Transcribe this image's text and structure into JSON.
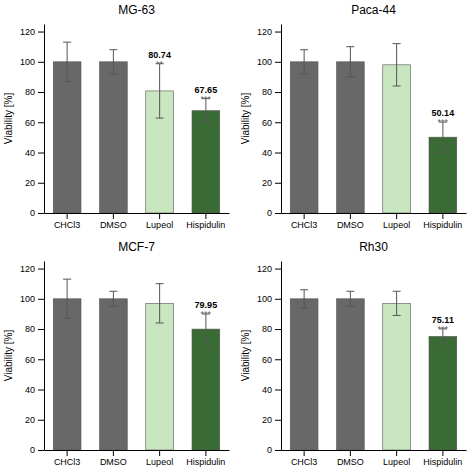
{
  "chart_data": [
    {
      "type": "bar",
      "title": "MG-63",
      "categories": [
        "CHCl3",
        "DMSO",
        "Lupeol",
        "Hispidulin"
      ],
      "values": [
        100,
        100,
        80.74,
        67.65
      ],
      "errors": [
        13,
        8,
        18,
        8
      ],
      "value_labels": [
        null,
        null,
        "80.74",
        "67.65"
      ],
      "annotations": [
        null,
        null,
        "**",
        "***"
      ],
      "colors": [
        "#686868",
        "#686868",
        "#c8e6c0",
        "#3a6b35"
      ],
      "ylabel": "Viability [%]",
      "ylim": [
        0,
        125
      ],
      "yticks": [
        0,
        20,
        40,
        60,
        80,
        100,
        120
      ],
      "grid": false
    },
    {
      "type": "bar",
      "title": "Paca-44",
      "categories": [
        "CHCl3",
        "DMSO",
        "Lupeol",
        "Hispidulin"
      ],
      "values": [
        100,
        100,
        98,
        50.14
      ],
      "errors": [
        8,
        10,
        14,
        10
      ],
      "value_labels": [
        null,
        null,
        null,
        "50.14"
      ],
      "annotations": [
        null,
        null,
        null,
        "***"
      ],
      "colors": [
        "#686868",
        "#686868",
        "#c8e6c0",
        "#3a6b35"
      ],
      "ylabel": "Viability [%]",
      "ylim": [
        0,
        125
      ],
      "yticks": [
        0,
        20,
        40,
        60,
        80,
        100,
        120
      ],
      "grid": false
    },
    {
      "type": "bar",
      "title": "MCF-7",
      "categories": [
        "CHCl3",
        "DMSO",
        "Lupeol",
        "Hispidulin"
      ],
      "values": [
        100,
        100,
        97,
        79.95
      ],
      "errors": [
        13,
        5,
        13,
        10
      ],
      "value_labels": [
        null,
        null,
        null,
        "79.95"
      ],
      "annotations": [
        null,
        null,
        null,
        "***"
      ],
      "colors": [
        "#686868",
        "#686868",
        "#c8e6c0",
        "#3a6b35"
      ],
      "ylabel": "Viability [%]",
      "ylim": [
        0,
        125
      ],
      "yticks": [
        0,
        20,
        40,
        60,
        80,
        100,
        120
      ],
      "grid": false
    },
    {
      "type": "bar",
      "title": "Rh30",
      "categories": [
        "CHCl3",
        "DMSO",
        "Lupeol",
        "Hispidulin"
      ],
      "values": [
        100,
        100,
        97,
        75.11
      ],
      "errors": [
        6,
        5,
        8,
        5
      ],
      "value_labels": [
        null,
        null,
        null,
        "75.11"
      ],
      "annotations": [
        null,
        null,
        null,
        "***"
      ],
      "colors": [
        "#686868",
        "#686868",
        "#c8e6c0",
        "#3a6b35"
      ],
      "ylabel": "Viability [%]",
      "ylim": [
        0,
        125
      ],
      "yticks": [
        0,
        20,
        40,
        60,
        80,
        100,
        120
      ],
      "grid": false
    }
  ]
}
